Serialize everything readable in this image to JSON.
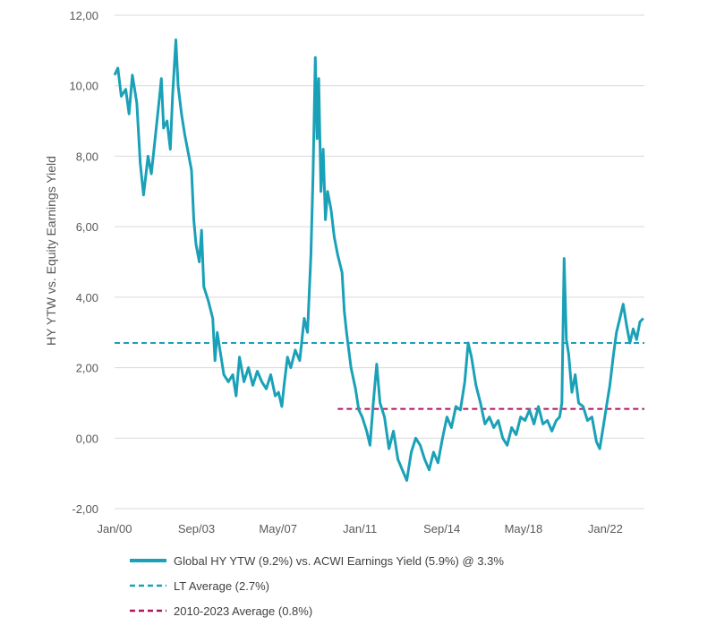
{
  "chart_data": {
    "type": "line",
    "title": "",
    "xlabel": "",
    "ylabel": "HY YTW vs. Equity Earnings Yield",
    "ylim": [
      -2,
      12
    ],
    "y_ticks": [
      "-2,00",
      "0,00",
      "2,00",
      "4,00",
      "6,00",
      "8,00",
      "10,00",
      "12,00"
    ],
    "y_tick_values": [
      -2,
      0,
      2,
      4,
      6,
      8,
      10,
      12
    ],
    "x_range": [
      2000.0,
      2023.75
    ],
    "x_ticks": [
      {
        "label": "Jan/00",
        "value": 2000.0
      },
      {
        "label": "Sep/03",
        "value": 2003.67
      },
      {
        "label": "May/07",
        "value": 2007.33
      },
      {
        "label": "Jan/11",
        "value": 2011.0
      },
      {
        "label": "Sep/14",
        "value": 2014.67
      },
      {
        "label": "May/18",
        "value": 2018.33
      },
      {
        "label": "Jan/22",
        "value": 2022.0
      }
    ],
    "grid": "horizontal",
    "legend_position": "bottom",
    "series": [
      {
        "name": "Global HY YTW (9.2%) vs. ACWI Earnings Yield (5.9%) @ 3.3%",
        "style": "solid",
        "color": "#1aa1b8",
        "points": [
          [
            2000.0,
            10.3
          ],
          [
            2000.15,
            10.5
          ],
          [
            2000.3,
            9.7
          ],
          [
            2000.5,
            9.9
          ],
          [
            2000.65,
            9.2
          ],
          [
            2000.8,
            10.3
          ],
          [
            2001.0,
            9.5
          ],
          [
            2001.15,
            7.8
          ],
          [
            2001.3,
            6.9
          ],
          [
            2001.5,
            8.0
          ],
          [
            2001.65,
            7.5
          ],
          [
            2001.8,
            8.4
          ],
          [
            2002.0,
            9.6
          ],
          [
            2002.1,
            10.2
          ],
          [
            2002.2,
            8.8
          ],
          [
            2002.35,
            9.0
          ],
          [
            2002.5,
            8.2
          ],
          [
            2002.6,
            9.7
          ],
          [
            2002.75,
            11.3
          ],
          [
            2002.85,
            10.0
          ],
          [
            2003.0,
            9.2
          ],
          [
            2003.15,
            8.6
          ],
          [
            2003.3,
            8.1
          ],
          [
            2003.45,
            7.6
          ],
          [
            2003.55,
            6.2
          ],
          [
            2003.65,
            5.5
          ],
          [
            2003.8,
            5.0
          ],
          [
            2003.9,
            5.9
          ],
          [
            2004.0,
            4.3
          ],
          [
            2004.2,
            3.9
          ],
          [
            2004.4,
            3.4
          ],
          [
            2004.5,
            2.2
          ],
          [
            2004.6,
            3.0
          ],
          [
            2004.75,
            2.4
          ],
          [
            2004.9,
            1.8
          ],
          [
            2005.1,
            1.6
          ],
          [
            2005.3,
            1.8
          ],
          [
            2005.45,
            1.2
          ],
          [
            2005.6,
            2.3
          ],
          [
            2005.8,
            1.6
          ],
          [
            2006.0,
            2.0
          ],
          [
            2006.2,
            1.5
          ],
          [
            2006.4,
            1.9
          ],
          [
            2006.6,
            1.6
          ],
          [
            2006.8,
            1.4
          ],
          [
            2007.0,
            1.8
          ],
          [
            2007.2,
            1.2
          ],
          [
            2007.35,
            1.3
          ],
          [
            2007.5,
            0.9
          ],
          [
            2007.6,
            1.5
          ],
          [
            2007.75,
            2.3
          ],
          [
            2007.9,
            2.0
          ],
          [
            2008.1,
            2.5
          ],
          [
            2008.3,
            2.2
          ],
          [
            2008.5,
            3.4
          ],
          [
            2008.65,
            3.0
          ],
          [
            2008.8,
            5.2
          ],
          [
            2008.9,
            7.5
          ],
          [
            2009.0,
            10.8
          ],
          [
            2009.08,
            8.5
          ],
          [
            2009.15,
            10.2
          ],
          [
            2009.25,
            7.0
          ],
          [
            2009.35,
            8.2
          ],
          [
            2009.45,
            6.2
          ],
          [
            2009.55,
            7.0
          ],
          [
            2009.7,
            6.5
          ],
          [
            2009.85,
            5.7
          ],
          [
            2010.0,
            5.2
          ],
          [
            2010.2,
            4.7
          ],
          [
            2010.3,
            3.6
          ],
          [
            2010.4,
            3.0
          ],
          [
            2010.6,
            2.0
          ],
          [
            2010.8,
            1.4
          ],
          [
            2010.95,
            0.8
          ],
          [
            2011.1,
            0.6
          ],
          [
            2011.3,
            0.2
          ],
          [
            2011.45,
            -0.2
          ],
          [
            2011.6,
            1.0
          ],
          [
            2011.75,
            2.1
          ],
          [
            2011.9,
            1.0
          ],
          [
            2012.1,
            0.6
          ],
          [
            2012.3,
            -0.3
          ],
          [
            2012.5,
            0.2
          ],
          [
            2012.7,
            -0.6
          ],
          [
            2012.9,
            -0.9
          ],
          [
            2013.1,
            -1.2
          ],
          [
            2013.3,
            -0.4
          ],
          [
            2013.5,
            0.0
          ],
          [
            2013.7,
            -0.2
          ],
          [
            2013.9,
            -0.6
          ],
          [
            2014.1,
            -0.9
          ],
          [
            2014.3,
            -0.4
          ],
          [
            2014.5,
            -0.7
          ],
          [
            2014.7,
            0.0
          ],
          [
            2014.9,
            0.6
          ],
          [
            2015.1,
            0.3
          ],
          [
            2015.3,
            0.9
          ],
          [
            2015.5,
            0.8
          ],
          [
            2015.7,
            1.6
          ],
          [
            2015.85,
            2.7
          ],
          [
            2016.0,
            2.3
          ],
          [
            2016.2,
            1.5
          ],
          [
            2016.4,
            1.0
          ],
          [
            2016.6,
            0.4
          ],
          [
            2016.8,
            0.6
          ],
          [
            2017.0,
            0.3
          ],
          [
            2017.2,
            0.5
          ],
          [
            2017.4,
            0.0
          ],
          [
            2017.6,
            -0.2
          ],
          [
            2017.8,
            0.3
          ],
          [
            2018.0,
            0.1
          ],
          [
            2018.2,
            0.6
          ],
          [
            2018.4,
            0.5
          ],
          [
            2018.6,
            0.8
          ],
          [
            2018.8,
            0.4
          ],
          [
            2019.0,
            0.9
          ],
          [
            2019.2,
            0.4
          ],
          [
            2019.4,
            0.5
          ],
          [
            2019.6,
            0.2
          ],
          [
            2019.8,
            0.5
          ],
          [
            2019.95,
            0.6
          ],
          [
            2020.05,
            1.0
          ],
          [
            2020.15,
            5.1
          ],
          [
            2020.25,
            2.8
          ],
          [
            2020.35,
            2.4
          ],
          [
            2020.5,
            1.3
          ],
          [
            2020.65,
            1.8
          ],
          [
            2020.8,
            1.0
          ],
          [
            2021.0,
            0.9
          ],
          [
            2021.2,
            0.5
          ],
          [
            2021.4,
            0.6
          ],
          [
            2021.6,
            -0.1
          ],
          [
            2021.75,
            -0.3
          ],
          [
            2021.9,
            0.3
          ],
          [
            2022.05,
            0.9
          ],
          [
            2022.2,
            1.5
          ],
          [
            2022.35,
            2.3
          ],
          [
            2022.5,
            3.0
          ],
          [
            2022.65,
            3.4
          ],
          [
            2022.8,
            3.8
          ],
          [
            2022.95,
            3.2
          ],
          [
            2023.1,
            2.7
          ],
          [
            2023.25,
            3.1
          ],
          [
            2023.4,
            2.8
          ],
          [
            2023.55,
            3.3
          ],
          [
            2023.7,
            3.4
          ]
        ]
      },
      {
        "name": "LT Average (2.7%)",
        "style": "dashed",
        "color": "#1aa1b8",
        "points": [
          [
            2000.0,
            2.7
          ],
          [
            2023.75,
            2.7
          ]
        ]
      },
      {
        "name": "2010-2023 Average (0.8%)",
        "style": "dashed",
        "color": "#b3145a",
        "points": [
          [
            2010.0,
            0.83
          ],
          [
            2023.75,
            0.83
          ]
        ]
      }
    ]
  }
}
